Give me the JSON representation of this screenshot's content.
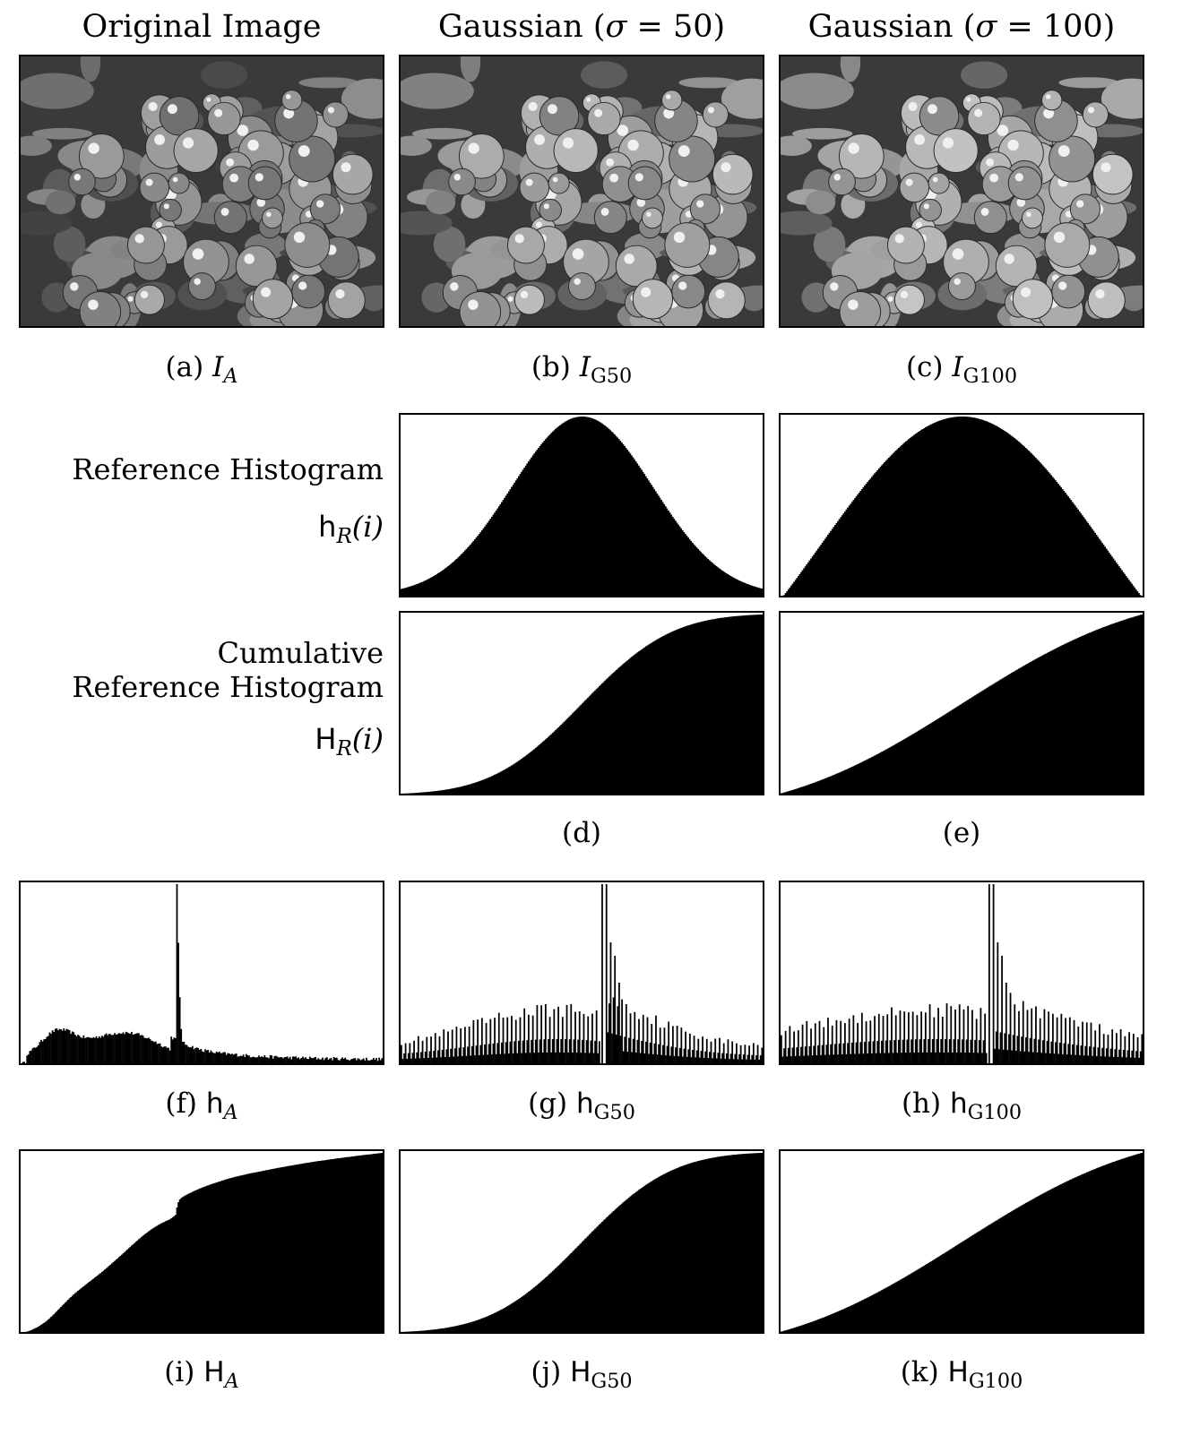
{
  "headers": {
    "original": "Original Image",
    "g50_prefix": "Gaussian (",
    "g50_sigma": "σ",
    "g50_eq": " = 50)",
    "g100_prefix": "Gaussian (",
    "g100_sigma": "σ",
    "g100_eq": " = 100)"
  },
  "row_labels": {
    "ref_hist": "Reference Histogram",
    "ref_hist_sym": "h",
    "ref_hist_sub": "R",
    "ref_hist_arg": "(i)",
    "cum_line1": "Cumulative",
    "cum_line2": "Reference Histogram",
    "cum_sym": "H",
    "cum_sub": "R",
    "cum_arg": "(i)"
  },
  "captions": {
    "a_tag": "(a)",
    "a_sym": "I",
    "a_sub": "A",
    "b_tag": "(b)",
    "b_sym": "I",
    "b_sub": "G50",
    "c_tag": "(c)",
    "c_sym": "I",
    "c_sub": "G100",
    "d_tag": "(d)",
    "e_tag": "(e)",
    "f_tag": "(f)",
    "f_sym": "h",
    "f_sub": "A",
    "g_tag": "(g)",
    "g_sym": "h",
    "g_sub": "G50",
    "h_tag": "(h)",
    "h_sym": "h",
    "h_sub": "G100",
    "i_tag": "(i)",
    "i_sym": "H",
    "i_sub": "A",
    "j_tag": "(j)",
    "j_sym": "H",
    "j_sub": "G50",
    "k_tag": "(k)",
    "k_sym": "H",
    "k_sub": "G100"
  },
  "colors": {
    "ink": "#000000",
    "paper": "#ffffff"
  },
  "chart_data": [
    {
      "id": "d-top",
      "type": "area",
      "kind": "gaussian",
      "mean": 128,
      "sigma": 50,
      "x": [
        0,
        255
      ],
      "cumulative": false
    },
    {
      "id": "e-top",
      "type": "area",
      "kind": "gaussian",
      "mean": 128,
      "sigma": 100,
      "x": [
        0,
        255
      ],
      "cumulative": false
    },
    {
      "id": "d-bottom",
      "type": "area",
      "kind": "gaussian",
      "mean": 128,
      "sigma": 50,
      "x": [
        0,
        255
      ],
      "cumulative": true
    },
    {
      "id": "e-bottom",
      "type": "area",
      "kind": "gaussian",
      "mean": 128,
      "sigma": 100,
      "x": [
        0,
        255
      ],
      "cumulative": true
    },
    {
      "id": "f",
      "type": "bar",
      "kind": "histogram",
      "x": [
        0,
        255
      ],
      "peak_index": 110,
      "cumulative": false
    },
    {
      "id": "g",
      "type": "bar",
      "kind": "histogram-matched",
      "x": [
        0,
        255
      ],
      "peak_index": 142,
      "cumulative": false
    },
    {
      "id": "h",
      "type": "bar",
      "kind": "histogram-matched",
      "x": [
        0,
        255
      ],
      "peak_index": 147,
      "cumulative": false
    },
    {
      "id": "i",
      "type": "area",
      "kind": "cumulative",
      "x": [
        0,
        255
      ],
      "cumulative": true
    },
    {
      "id": "j",
      "type": "area",
      "kind": "cumulative",
      "x": [
        0,
        255
      ],
      "cumulative": true
    },
    {
      "id": "k",
      "type": "area",
      "kind": "cumulative",
      "x": [
        0,
        255
      ],
      "cumulative": true
    }
  ]
}
